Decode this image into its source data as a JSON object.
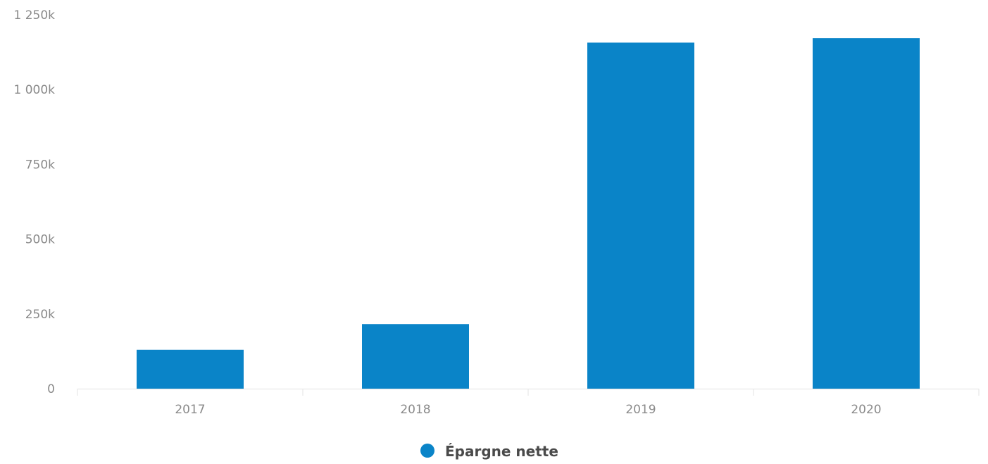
{
  "chart_data": {
    "type": "bar",
    "categories": [
      "2017",
      "2018",
      "2019",
      "2020"
    ],
    "series": [
      {
        "name": "Épargne nette",
        "values": [
          130000,
          216000,
          1157000,
          1172000
        ],
        "color": "#0a84c8"
      }
    ],
    "ylim": [
      0,
      1250000
    ],
    "yticks": [
      {
        "value": 0,
        "label": "0"
      },
      {
        "value": 250000,
        "label": "250k"
      },
      {
        "value": 500000,
        "label": "500k"
      },
      {
        "value": 750000,
        "label": "750k"
      },
      {
        "value": 1000000,
        "label": "1 000k"
      },
      {
        "value": 1250000,
        "label": "1 250k"
      }
    ],
    "grid": false,
    "legend": {
      "position": "bottom-center",
      "marker": "circle"
    },
    "colors": {
      "bar": "#0a84c8",
      "axis": "#e3e3e3",
      "tick_text": "#8a8a8a",
      "legend_text": "#4a4a4a"
    }
  }
}
